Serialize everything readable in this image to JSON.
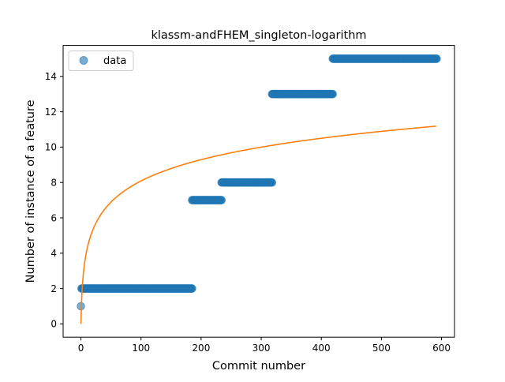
{
  "chart_data": {
    "type": "scatter",
    "title": "klassm-andFHEM_singleton-logarithm",
    "xlabel": "Commit number",
    "ylabel": "Number of instance of a feature",
    "xlim": [
      -29.6,
      621.6
    ],
    "ylim": [
      -0.75,
      15.75
    ],
    "xticks": [
      0,
      100,
      200,
      300,
      400,
      500,
      600
    ],
    "yticks": [
      0,
      2,
      4,
      6,
      8,
      10,
      12,
      14
    ],
    "legend": {
      "position": "top-left",
      "entries": [
        "data"
      ]
    },
    "grid": false,
    "colors": {
      "data": "#1f77b4",
      "fit": "#ff7f0e"
    },
    "series": [
      {
        "name": "data",
        "kind": "points",
        "points": [
          [
            0,
            1
          ]
        ],
        "runs": [
          {
            "x_start": 1,
            "x_end": 185,
            "y": 2
          },
          {
            "x_start": 185,
            "x_end": 234,
            "y": 7
          },
          {
            "x_start": 234,
            "x_end": 318,
            "y": 8
          },
          {
            "x_start": 318,
            "x_end": 419,
            "y": 13
          },
          {
            "x_start": 419,
            "x_end": 592,
            "y": 15
          }
        ]
      },
      {
        "kind": "line",
        "formula": "y = 1.752 * ln(x + 1)",
        "x_range": [
          0,
          591
        ]
      }
    ]
  }
}
